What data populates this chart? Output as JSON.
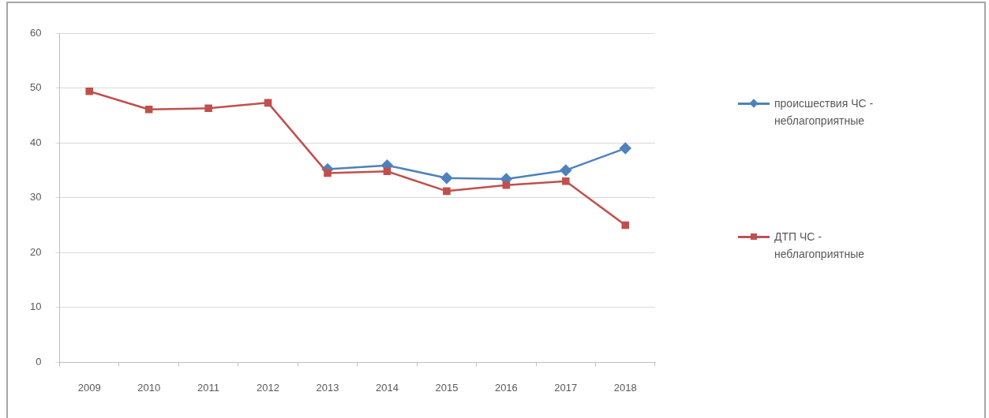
{
  "chart_data": {
    "type": "line",
    "categories": [
      "2009",
      "2010",
      "2011",
      "2012",
      "2013",
      "2014",
      "2015",
      "2016",
      "2017",
      "2018"
    ],
    "series": [
      {
        "name": "происшествия ЧС - неблагоприятные",
        "color": "#4f81bd",
        "marker": "diamond",
        "values": [
          null,
          null,
          null,
          null,
          35.2,
          35.9,
          33.6,
          33.4,
          35.0,
          39.0
        ]
      },
      {
        "name": "ДТП ЧС - неблагоприятные",
        "color": "#c0504d",
        "marker": "square",
        "values": [
          49.4,
          46.1,
          46.3,
          47.3,
          34.5,
          34.8,
          31.2,
          32.3,
          33.0,
          25.0
        ]
      }
    ],
    "ylim": [
      0,
      60
    ],
    "yticks": [
      0,
      10,
      20,
      30,
      40,
      50,
      60
    ],
    "grid": "y",
    "legend": "right",
    "line_style": "solid"
  }
}
